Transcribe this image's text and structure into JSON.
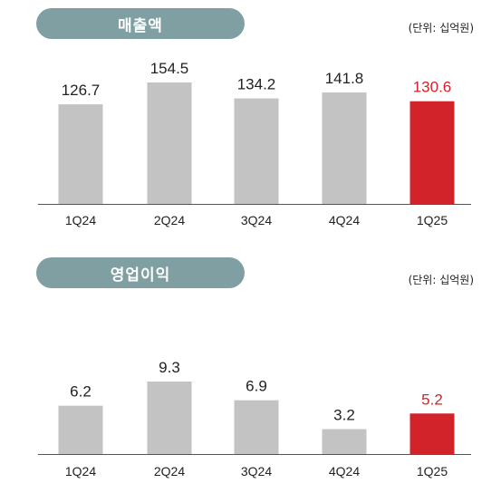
{
  "colors": {
    "bar": "#c3c3c3",
    "highlight": "#d2232a",
    "pill": "#7f9fa2",
    "axis": "#555555"
  },
  "charts": [
    {
      "title": "매출액",
      "unit": "(단위: 십억원)"
    },
    {
      "title": "영업이익",
      "unit": "(단위: 십억원)"
    }
  ],
  "chart_data": [
    {
      "type": "bar",
      "title": "매출액",
      "categories": [
        "1Q24",
        "2Q24",
        "3Q24",
        "4Q24",
        "1Q25"
      ],
      "values": [
        126.7,
        154.5,
        134.2,
        141.8,
        130.6
      ],
      "labels": [
        "126.7",
        "154.5",
        "134.2",
        "141.8",
        "130.6"
      ],
      "highlight_index": 4,
      "ylim": [
        0,
        160
      ]
    },
    {
      "type": "bar",
      "title": "영업이익",
      "categories": [
        "1Q24",
        "2Q24",
        "3Q24",
        "4Q24",
        "1Q25"
      ],
      "values": [
        6.2,
        9.3,
        6.9,
        3.2,
        5.2
      ],
      "labels": [
        "6.2",
        "9.3",
        "6.9",
        "3.2",
        "5.2"
      ],
      "highlight_index": 4,
      "ylim": [
        0,
        10
      ]
    }
  ]
}
